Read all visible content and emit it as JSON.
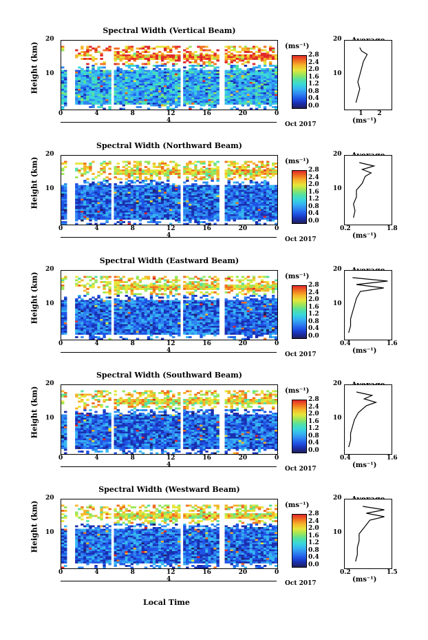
{
  "panels": [
    {
      "title": "Spectral Width (Vertical Beam)",
      "avg_title": "Average",
      "ylabel": "Height (km)",
      "avg_xticks": [
        "1",
        "2"
      ],
      "avg_xlabel": "(ms⁻¹)",
      "cbar_ticks": [
        "2.8",
        "2.4",
        "2.0",
        "1.6",
        "1.2",
        "0.8",
        "0.4",
        "0.0"
      ]
    },
    {
      "title": "Spectral Width (Northward Beam)",
      "avg_title": "Average",
      "ylabel": "Height (km)",
      "avg_xticks": [
        "0.2",
        "1.8"
      ],
      "avg_xlabel": "(ms⁻¹)",
      "cbar_ticks": [
        "2.8",
        "2.4",
        "2.0",
        "1.6",
        "1.2",
        "0.8",
        "0.4",
        "0.0"
      ]
    },
    {
      "title": "Spectral Width (Eastward Beam)",
      "avg_title": "Average",
      "ylabel": "Height (km)",
      "avg_xticks": [
        "0.4",
        "1.6"
      ],
      "avg_xlabel": "(ms⁻¹)",
      "cbar_ticks": [
        "2.8",
        "2.4",
        "2.0",
        "1.6",
        "1.2",
        "0.8",
        "0.4",
        "0.0"
      ]
    },
    {
      "title": "Spectral Width (Southward Beam)",
      "avg_title": "Average",
      "ylabel": "Height (km)",
      "avg_xticks": [
        "0.4",
        "1.6"
      ],
      "avg_xlabel": "(ms⁻¹)",
      "cbar_ticks": [
        "2.8",
        "2.4",
        "2.0",
        "1.6",
        "1.2",
        "0.8",
        "0.4",
        "0.0"
      ]
    },
    {
      "title": "Spectral Width (Westward Beam)",
      "avg_title": "Average",
      "ylabel": "Height (km)",
      "avg_xticks": [
        "0.2",
        "1.5"
      ],
      "avg_xlabel": "(ms⁻¹)",
      "cbar_ticks": [
        "2.8",
        "2.4",
        "2.0",
        "1.6",
        "1.2",
        "0.8",
        "0.4",
        "0.0"
      ]
    }
  ],
  "common": {
    "cbar_unit": "(ms⁻¹)",
    "xticks": [
      "0",
      "4",
      "8",
      "12",
      "16",
      "20",
      "0"
    ],
    "yticks": [
      "20",
      "10"
    ],
    "avg_yticks": [
      "20",
      "10"
    ],
    "date_label": "Oct 2017",
    "day_label": "4",
    "footer_xlabel": "Local Time"
  },
  "colors": {
    "colormap": [
      "#20205a",
      "#1a2fb0",
      "#1f55e6",
      "#2f86f0",
      "#36b6f2",
      "#3ad8d8",
      "#55e0a0",
      "#9be65a",
      "#e6e63a",
      "#f5b52a",
      "#f07020",
      "#e0282a"
    ]
  },
  "chart_data": [
    {
      "type": "heatmap",
      "title": "Spectral Width (Vertical Beam)",
      "xlabel": "Local Time",
      "ylabel": "Height (km)",
      "xlim": [
        0,
        24
      ],
      "ylim": [
        0,
        20
      ],
      "colorbar_range": [
        0.0,
        3.0
      ],
      "colorbar_unit": "(ms⁻¹)",
      "data_gaps_hours": [
        [
          0.6,
          1.6
        ],
        [
          5.4,
          5.8
        ],
        [
          13.2,
          13.6
        ],
        [
          17.6,
          18.0
        ]
      ],
      "average_profile": {
        "xlim": [
          0,
          2.5
        ],
        "height": [
          2,
          4,
          6,
          8,
          10,
          12,
          14,
          15,
          16,
          17,
          18
        ],
        "value": [
          0.6,
          0.7,
          0.8,
          0.7,
          0.8,
          0.9,
          1.0,
          1.1,
          1.2,
          0.9,
          0.8
        ]
      }
    },
    {
      "type": "heatmap",
      "title": "Spectral Width (Northward Beam)",
      "xlabel": "Local Time",
      "ylabel": "Height (km)",
      "xlim": [
        0,
        24
      ],
      "ylim": [
        0,
        20
      ],
      "colorbar_range": [
        0.0,
        3.0
      ],
      "data_gaps_hours": [
        [
          0.6,
          1.6
        ],
        [
          5.4,
          5.8
        ],
        [
          13.2,
          13.6
        ],
        [
          17.6,
          18.0
        ]
      ],
      "average_profile": {
        "xlim": [
          0.2,
          1.8
        ],
        "height": [
          2,
          4,
          6,
          8,
          10,
          12,
          14,
          15,
          16,
          17,
          18
        ],
        "value": [
          0.5,
          0.55,
          0.5,
          0.6,
          0.6,
          0.8,
          0.9,
          1.1,
          0.8,
          1.2,
          0.7
        ]
      }
    },
    {
      "type": "heatmap",
      "title": "Spectral Width (Eastward Beam)",
      "xlabel": "Local Time",
      "ylabel": "Height (km)",
      "xlim": [
        0,
        24
      ],
      "ylim": [
        0,
        20
      ],
      "colorbar_range": [
        0.0,
        3.0
      ],
      "data_gaps_hours": [
        [
          0.6,
          1.6
        ],
        [
          5.4,
          5.8
        ],
        [
          13.2,
          13.6
        ],
        [
          17.6,
          18.0
        ]
      ],
      "average_profile": {
        "xlim": [
          0.4,
          1.6
        ],
        "height": [
          2,
          4,
          6,
          8,
          10,
          12,
          14,
          15,
          16,
          17,
          18
        ],
        "value": [
          0.5,
          0.55,
          0.55,
          0.6,
          0.65,
          0.7,
          0.8,
          1.4,
          0.7,
          1.5,
          0.6
        ]
      }
    },
    {
      "type": "heatmap",
      "title": "Spectral Width (Southward Beam)",
      "xlabel": "Local Time",
      "ylabel": "Height (km)",
      "xlim": [
        0,
        24
      ],
      "ylim": [
        0,
        20
      ],
      "colorbar_range": [
        0.0,
        3.0
      ],
      "data_gaps_hours": [
        [
          0.6,
          1.6
        ],
        [
          5.4,
          5.8
        ],
        [
          13.2,
          13.6
        ],
        [
          17.6,
          18.0
        ]
      ],
      "average_profile": {
        "xlim": [
          0.4,
          1.6
        ],
        "height": [
          2,
          4,
          6,
          8,
          10,
          12,
          14,
          15,
          16,
          17,
          18
        ],
        "value": [
          0.5,
          0.55,
          0.55,
          0.6,
          0.65,
          0.75,
          0.95,
          1.2,
          0.9,
          1.1,
          0.7
        ]
      }
    },
    {
      "type": "heatmap",
      "title": "Spectral Width (Westward Beam)",
      "xlabel": "Local Time",
      "ylabel": "Height (km)",
      "xlim": [
        0,
        24
      ],
      "ylim": [
        0,
        20
      ],
      "colorbar_range": [
        0.0,
        3.0
      ],
      "data_gaps_hours": [
        [
          0.6,
          1.6
        ],
        [
          5.4,
          5.8
        ],
        [
          13.2,
          13.6
        ],
        [
          17.6,
          18.0
        ]
      ],
      "average_profile": {
        "xlim": [
          0.2,
          1.5
        ],
        "height": [
          2,
          4,
          6,
          8,
          10,
          12,
          14,
          15,
          16,
          17,
          18
        ],
        "value": [
          0.5,
          0.55,
          0.55,
          0.6,
          0.6,
          0.75,
          0.9,
          1.3,
          0.8,
          1.3,
          0.7
        ]
      }
    }
  ]
}
